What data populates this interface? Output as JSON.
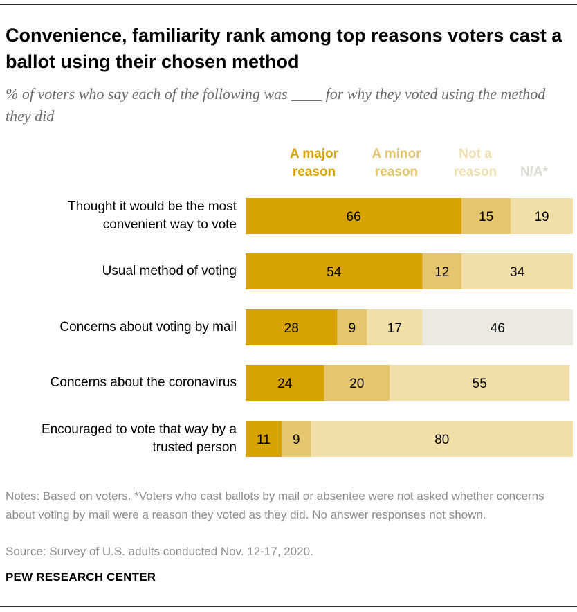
{
  "chart_data": {
    "type": "bar",
    "orientation": "horizontal",
    "stacked": true,
    "title": "Convenience, familiarity rank among top reasons voters cast a ballot using their chosen method",
    "subtitle": "% of voters who say each of the following was ____ for why they voted using the method they did",
    "categories": [
      "Thought it would be the most convenient way to vote",
      "Usual method of voting",
      "Concerns about voting by mail",
      "Concerns about the coronavirus",
      "Encouraged to vote that way by a trusted person"
    ],
    "series": [
      {
        "name": "A major reason",
        "color": "#d6a300",
        "label_color": "#d6a300",
        "values": [
          66,
          54,
          28,
          24,
          11
        ]
      },
      {
        "name": "A minor reason",
        "color": "#e5c56e",
        "label_color": "#e3c46b",
        "values": [
          15,
          12,
          9,
          20,
          9
        ]
      },
      {
        "name": "Not a reason",
        "color": "#f1dfa9",
        "label_color": "#efdfae",
        "values": [
          19,
          34,
          17,
          55,
          80
        ]
      },
      {
        "name": "N/A*",
        "color": "#ece9e1",
        "label_color": "#dddad2",
        "values": [
          null,
          null,
          46,
          null,
          null
        ]
      }
    ],
    "xlim": [
      0,
      100
    ],
    "grid": false,
    "legend_position": "top"
  },
  "notes": "Notes: Based on voters. *Voters who cast ballots by mail or absentee were not asked whether concerns about voting by mail were a reason they voted as they did. No answer responses not shown.",
  "source": "Source: Survey of U.S. adults conducted Nov. 12-17, 2020.",
  "brand": "PEW RESEARCH CENTER"
}
